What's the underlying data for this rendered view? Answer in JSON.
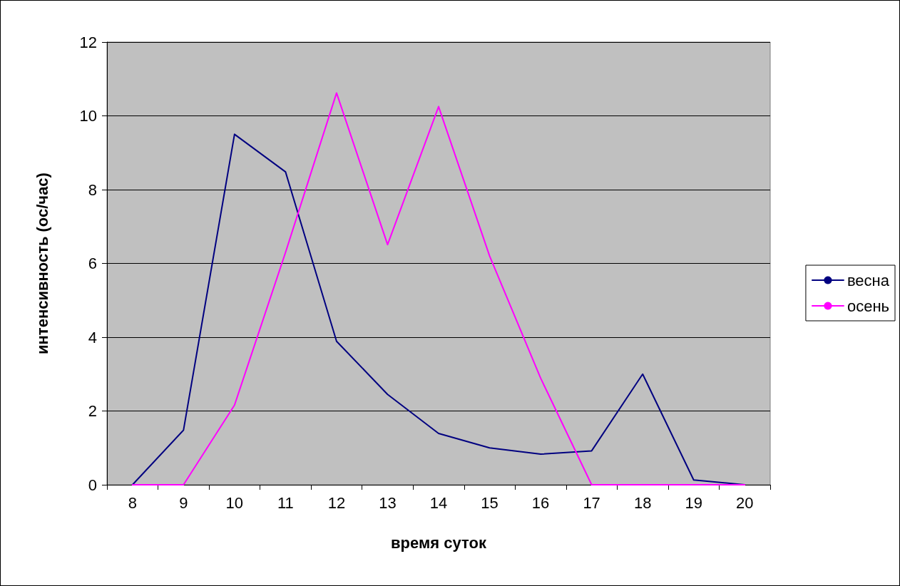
{
  "chart_data": {
    "type": "line",
    "xlabel": "время суток",
    "ylabel": "интенсивность (ос/час)",
    "categories": [
      "8",
      "9",
      "10",
      "11",
      "12",
      "13",
      "14",
      "15",
      "16",
      "17",
      "18",
      "19",
      "20"
    ],
    "series": [
      {
        "name": "весна",
        "color": "#000080",
        "values": [
          0,
          1.48,
          9.5,
          8.48,
          3.89,
          2.45,
          1.39,
          1.0,
          0.83,
          0.92,
          3.0,
          0.13,
          0
        ]
      },
      {
        "name": "осень",
        "color": "#ff00ff",
        "values": [
          0,
          0,
          2.16,
          6.3,
          10.62,
          6.51,
          10.25,
          6.2,
          2.89,
          0,
          0,
          0,
          0
        ]
      }
    ],
    "ylim": [
      0,
      12
    ],
    "yticks": [
      0,
      2,
      4,
      6,
      8,
      10,
      12
    ],
    "grid": "y",
    "legend": "right",
    "marker": "none",
    "line_style": "solid"
  }
}
